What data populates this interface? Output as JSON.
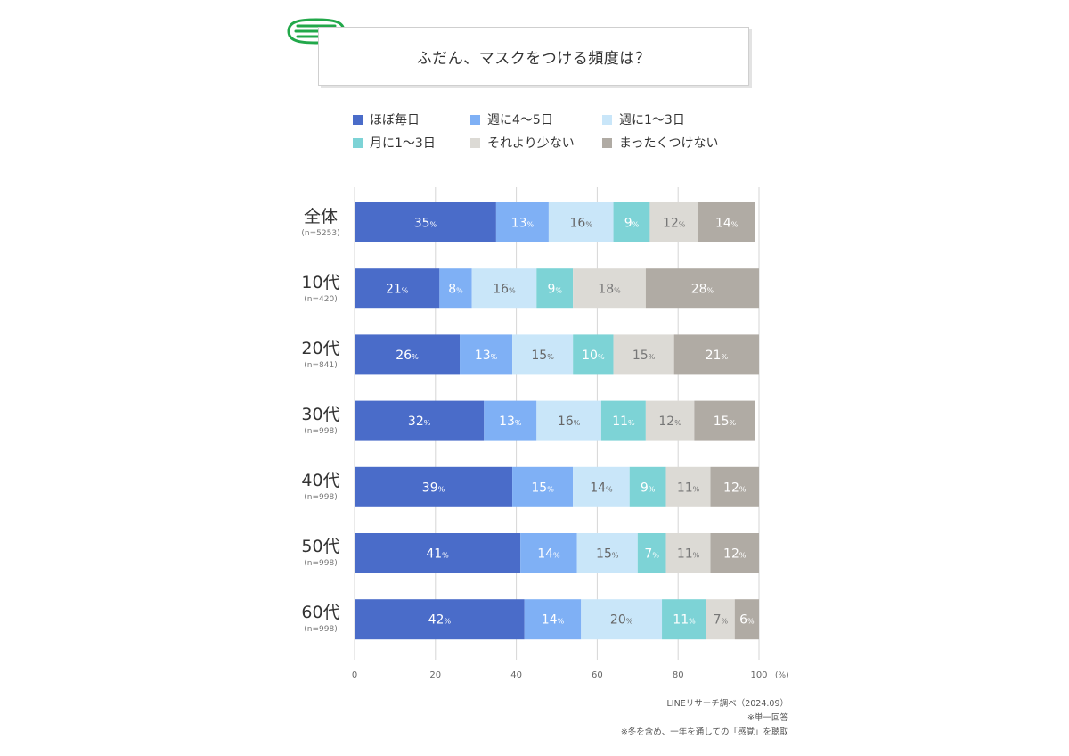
{
  "title": "ふだん、マスクをつける頻度は？",
  "legend": [
    {
      "label": "ほぼ毎日",
      "color": "#4a6cc9"
    },
    {
      "label": "週に4～5日",
      "color": "#7fb0f5"
    },
    {
      "label": "週に1～3日",
      "color": "#c9e6f9"
    },
    {
      "label": "月に1～3日",
      "color": "#7dd3d6"
    },
    {
      "label": "それより少ない",
      "color": "#dcdad5"
    },
    {
      "label": "まったくつけない",
      "color": "#b0aba4"
    }
  ],
  "source": {
    "line1": "LINEリサーチ調べ（2024.09）",
    "line2": "※単一回答",
    "line3": "※冬を含め、一年を通しての「感覚」を聴取"
  },
  "chart_data": {
    "type": "bar",
    "orientation": "horizontal",
    "stacked": true,
    "title": "ふだん、マスクをつける頻度は？",
    "xlim": [
      0,
      100
    ],
    "x_ticks": [
      "0",
      "20",
      "40",
      "60",
      "80",
      "100"
    ],
    "x_unit": "(%)",
    "value_suffix": "%",
    "grid": true,
    "legend_position": "top",
    "categories": [
      {
        "label": "全体",
        "n": "(n=5253)"
      },
      {
        "label": "10代",
        "n": "(n=420)"
      },
      {
        "label": "20代",
        "n": "(n=841)"
      },
      {
        "label": "30代",
        "n": "(n=998)"
      },
      {
        "label": "40代",
        "n": "(n=998)"
      },
      {
        "label": "50代",
        "n": "(n=998)"
      },
      {
        "label": "60代",
        "n": "(n=998)"
      }
    ],
    "series": [
      {
        "name": "ほぼ毎日",
        "color": "#4a6cc9",
        "text_color": "#ffffff",
        "values": [
          35,
          21,
          26,
          32,
          39,
          41,
          42
        ]
      },
      {
        "name": "週に4～5日",
        "color": "#7fb0f5",
        "text_color": "#ffffff",
        "values": [
          13,
          8,
          13,
          13,
          15,
          14,
          14
        ]
      },
      {
        "name": "週に1～3日",
        "color": "#c9e6f9",
        "text_color": "#666666",
        "values": [
          16,
          16,
          15,
          16,
          14,
          15,
          20
        ]
      },
      {
        "name": "月に1～3日",
        "color": "#7dd3d6",
        "text_color": "#ffffff",
        "values": [
          9,
          9,
          10,
          11,
          9,
          7,
          11
        ]
      },
      {
        "name": "それより少ない",
        "color": "#dcdad5",
        "text_color": "#777777",
        "values": [
          12,
          18,
          15,
          12,
          11,
          11,
          7
        ]
      },
      {
        "name": "まったくつけない",
        "color": "#b0aba4",
        "text_color": "#ffffff",
        "values": [
          14,
          28,
          21,
          15,
          12,
          12,
          6
        ]
      }
    ]
  }
}
